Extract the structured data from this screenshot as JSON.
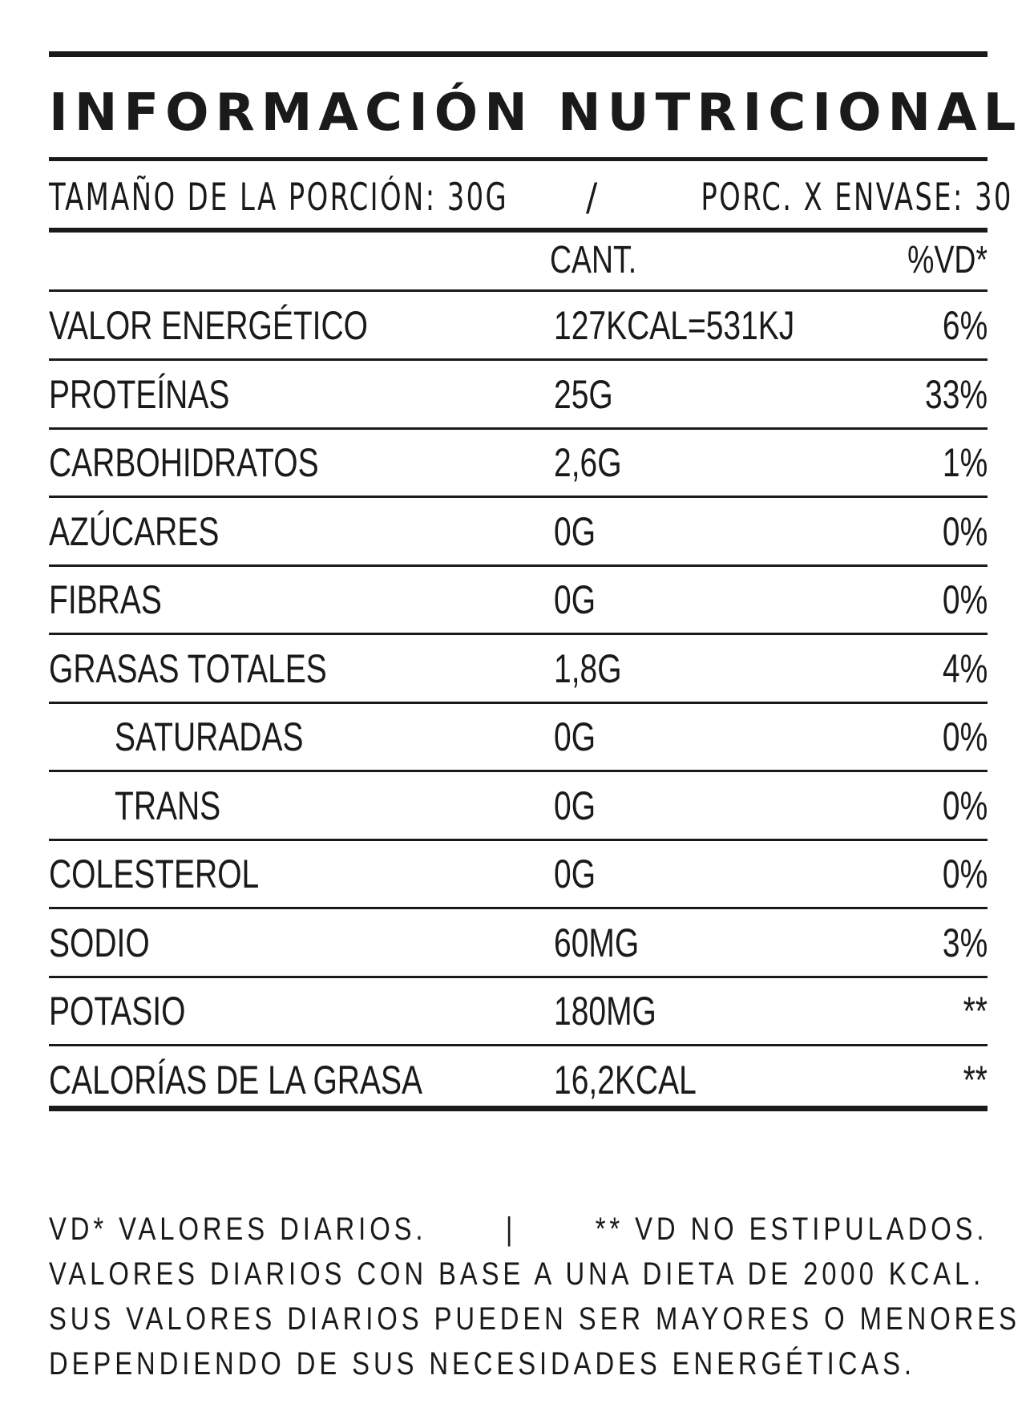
{
  "title": "INFORMACIÓN NUTRICIONAL",
  "serving": {
    "left": "TAMAÑO DE LA PORCIÓN: 30G",
    "sep": "/",
    "right": "PORC. X ENVASE: 30"
  },
  "columns": {
    "amount": "CANT.",
    "dv": "%VD*"
  },
  "rows": [
    {
      "name": "VALOR ENERGÉTICO",
      "amount": "127KCAL=531KJ",
      "dv": "6%"
    },
    {
      "name": "PROTEÍNAS",
      "amount": "25G",
      "dv": "33%"
    },
    {
      "name": "CARBOHIDRATOS",
      "amount": "2,6G",
      "dv": "1%"
    },
    {
      "name": "AZÚCARES",
      "amount": "0G",
      "dv": "0%"
    },
    {
      "name": "FIBRAS",
      "amount": "0G",
      "dv": "0%"
    },
    {
      "name": "GRASAS TOTALES",
      "amount": "1,8G",
      "dv": "4%"
    },
    {
      "name": "SATURADAS",
      "amount": "0G",
      "dv": "0%"
    },
    {
      "name": "TRANS",
      "amount": "0G",
      "dv": "0%"
    },
    {
      "name": "COLESTEROL",
      "amount": "0G",
      "dv": "0%"
    },
    {
      "name": "SODIO",
      "amount": "60MG",
      "dv": "3%"
    },
    {
      "name": "POTASIO",
      "amount": "180MG",
      "dv": "**"
    },
    {
      "name": "CALORÍAS DE LA GRASA",
      "amount": "16,2KCAL",
      "dv": "**"
    }
  ],
  "footnote": {
    "line1_a": "VD* VALORES DIARIOS.",
    "line1_sep": "|",
    "line1_b": "** VD NO ESTIPULADOS.",
    "line2": "VALORES DIARIOS CON BASE A UNA DIETA DE 2000 KCAL.",
    "line3": "SUS VALORES DIARIOS PUEDEN SER MAYORES O MENORES",
    "line4": "DEPENDIENDO DE SUS NECESIDADES ENERGÉTICAS."
  }
}
